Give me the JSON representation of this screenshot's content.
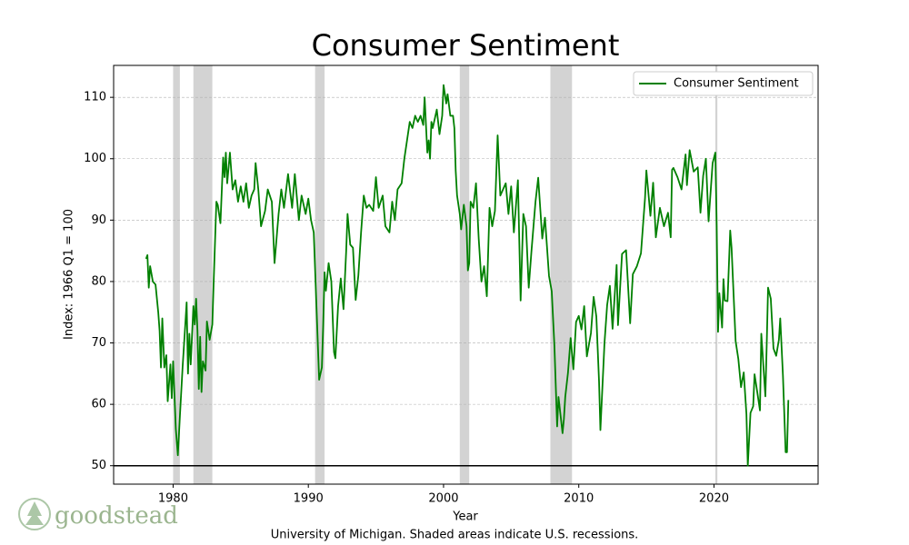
{
  "chart_data": {
    "type": "line",
    "title": "Consumer Sentiment",
    "xlabel": "Year",
    "ylabel": "Index: 1966 Q1 = 100",
    "caption": "University of Michigan. Shaded areas indicate U.S. recessions.",
    "watermark": "goodstead",
    "xlim": [
      1975.6,
      2027.7
    ],
    "ylim": [
      47,
      115.2
    ],
    "xticks": [
      1980,
      1990,
      2000,
      2010,
      2020
    ],
    "yticks": [
      50,
      60,
      70,
      80,
      90,
      100,
      110
    ],
    "grid": true,
    "legend": "upper right",
    "hline": 50,
    "recessions": [
      [
        1980.0,
        1980.5
      ],
      [
        1981.5,
        1982.9
      ],
      [
        1990.5,
        1991.2
      ],
      [
        2001.2,
        2001.9
      ],
      [
        2007.9,
        2009.5
      ],
      [
        2020.1,
        2020.25
      ]
    ],
    "x": [
      1978.0,
      1978.1,
      1978.2,
      1978.3,
      1978.5,
      1978.7,
      1978.9,
      1979.0,
      1979.1,
      1979.2,
      1979.35,
      1979.5,
      1979.6,
      1979.8,
      1979.9,
      1980.0,
      1980.2,
      1980.35,
      1980.5,
      1980.7,
      1980.9,
      1981.0,
      1981.1,
      1981.2,
      1981.3,
      1981.5,
      1981.6,
      1981.7,
      1981.8,
      1981.9,
      1982.0,
      1982.1,
      1982.2,
      1982.4,
      1982.5,
      1982.7,
      1982.9,
      1983.0,
      1983.2,
      1983.3,
      1983.5,
      1983.7,
      1983.8,
      1983.9,
      1984.0,
      1984.2,
      1984.4,
      1984.6,
      1984.8,
      1985.0,
      1985.2,
      1985.4,
      1985.6,
      1985.8,
      1986.0,
      1986.1,
      1986.3,
      1986.5,
      1986.8,
      1987.0,
      1987.3,
      1987.5,
      1987.8,
      1988.0,
      1988.2,
      1988.5,
      1988.8,
      1989.0,
      1989.3,
      1989.5,
      1989.8,
      1990.0,
      1990.2,
      1990.4,
      1990.6,
      1990.8,
      1991.0,
      1991.1,
      1991.2,
      1991.3,
      1991.5,
      1991.7,
      1991.9,
      1992.0,
      1992.2,
      1992.4,
      1992.6,
      1992.8,
      1992.9,
      1993.1,
      1993.3,
      1993.5,
      1993.7,
      1993.9,
      1994.1,
      1994.3,
      1994.5,
      1994.8,
      1995.0,
      1995.2,
      1995.5,
      1995.7,
      1996.0,
      1996.2,
      1996.4,
      1996.6,
      1996.9,
      1997.1,
      1997.3,
      1997.5,
      1997.7,
      1997.9,
      1998.1,
      1998.3,
      1998.5,
      1998.6,
      1998.8,
      1998.9,
      1999.0,
      1999.1,
      1999.2,
      1999.5,
      1999.7,
      1999.9,
      2000.0,
      2000.2,
      2000.3,
      2000.5,
      2000.7,
      2000.8,
      2000.9,
      2001.0,
      2001.2,
      2001.3,
      2001.5,
      2001.7,
      2001.8,
      2001.9,
      2002.0,
      2002.2,
      2002.4,
      2002.6,
      2002.8,
      2003.0,
      2003.2,
      2003.4,
      2003.6,
      2003.8,
      2004.0,
      2004.2,
      2004.4,
      2004.6,
      2004.8,
      2005.0,
      2005.2,
      2005.5,
      2005.7,
      2005.9,
      2006.1,
      2006.3,
      2006.5,
      2006.8,
      2007.0,
      2007.3,
      2007.5,
      2007.8,
      2008.0,
      2008.2,
      2008.4,
      2008.5,
      2008.8,
      2008.9,
      2009.0,
      2009.2,
      2009.4,
      2009.6,
      2009.8,
      2010.0,
      2010.2,
      2010.4,
      2010.6,
      2010.9,
      2011.1,
      2011.3,
      2011.5,
      2011.6,
      2011.9,
      2012.1,
      2012.3,
      2012.5,
      2012.8,
      2012.9,
      2013.2,
      2013.5,
      2013.8,
      2014.0,
      2014.3,
      2014.6,
      2014.9,
      2015.0,
      2015.3,
      2015.5,
      2015.7,
      2016.0,
      2016.3,
      2016.6,
      2016.8,
      2016.9,
      2017.0,
      2017.3,
      2017.6,
      2017.9,
      2018.0,
      2018.2,
      2018.5,
      2018.8,
      2019.0,
      2019.2,
      2019.4,
      2019.6,
      2019.9,
      2020.1,
      2020.2,
      2020.3,
      2020.4,
      2020.6,
      2020.7,
      2020.8,
      2021.0,
      2021.2,
      2021.3,
      2021.6,
      2021.8,
      2022.0,
      2022.2,
      2022.4,
      2022.5,
      2022.7,
      2022.9,
      2023.0,
      2023.2,
      2023.4,
      2023.5,
      2023.8,
      2023.9,
      2024.0,
      2024.2,
      2024.4,
      2024.6,
      2024.8,
      2024.9,
      2025.1,
      2025.3,
      2025.4,
      2025.5
    ],
    "series": [
      {
        "name": "Consumer Sentiment",
        "color": "#008000",
        "values": [
          83.7,
          84.3,
          79,
          82.5,
          80,
          79.5,
          75,
          72,
          66,
          74,
          66,
          68,
          60.5,
          66.5,
          61,
          67,
          56,
          51.7,
          58,
          66,
          73,
          76.6,
          65,
          71.5,
          66.5,
          76,
          73,
          77.2,
          72,
          62.5,
          71,
          62,
          67,
          65.5,
          73.5,
          70.5,
          73,
          80,
          93,
          92.5,
          89.5,
          100.2,
          97,
          101,
          96,
          101,
          95,
          96.5,
          93,
          95.5,
          93,
          96,
          92,
          94,
          95,
          99.3,
          95,
          89,
          91.5,
          95,
          93,
          83,
          91,
          95,
          92,
          97.5,
          92,
          97.5,
          90,
          94,
          91,
          93.5,
          90,
          88,
          76,
          64,
          66,
          73,
          81.5,
          78.5,
          83,
          80,
          68.5,
          67.5,
          76,
          80.5,
          75.5,
          85,
          91,
          86,
          85.5,
          77,
          81,
          88,
          94,
          92,
          92.5,
          91.5,
          97,
          92,
          94,
          89,
          88,
          93,
          90,
          95,
          96,
          100,
          103,
          106,
          105,
          107,
          106,
          107,
          105.5,
          110,
          101,
          103,
          100,
          106,
          105,
          108,
          104,
          107,
          112,
          109,
          110.5,
          107,
          107,
          105,
          98,
          94,
          91,
          88.5,
          92.5,
          89,
          81.8,
          83,
          93,
          92,
          96,
          87,
          80,
          82.5,
          77.6,
          92,
          89,
          91.5,
          103.8,
          94,
          95,
          96,
          91,
          95.5,
          88,
          96.5,
          76.9,
          91,
          89,
          79,
          84.9,
          93,
          96.9,
          87,
          90.4,
          80.9,
          78.4,
          69.5,
          56.4,
          61.2,
          55.3,
          57.6,
          61.2,
          65.1,
          70.8,
          65.7,
          73.4,
          74.4,
          72.2,
          76,
          67.8,
          71.6,
          77.5,
          74.3,
          63.7,
          55.8,
          69.9,
          76.2,
          79.3,
          72.3,
          82.7,
          72.9,
          84.5,
          85.1,
          73.2,
          81.2,
          82.5,
          84.6,
          93.6,
          98.1,
          90.7,
          96.1,
          87.2,
          92,
          89,
          91.2,
          87.2,
          98.2,
          98.5,
          97,
          95,
          100.7,
          95.7,
          101.4,
          97.9,
          98.6,
          91.2,
          97.2,
          100,
          89.8,
          99.3,
          101,
          89.1,
          71.8,
          78.1,
          72.5,
          80.4,
          76.9,
          76.8,
          88.3,
          85.5,
          70.3,
          67.4,
          62.8,
          65.2,
          58.4,
          50,
          58.6,
          59.7,
          64.9,
          62,
          59,
          71.5,
          61.3,
          69.7,
          79,
          77.2,
          69.1,
          67.9,
          70.5,
          74,
          64.7,
          52.2,
          52.2,
          60.7
        ]
      }
    ]
  }
}
